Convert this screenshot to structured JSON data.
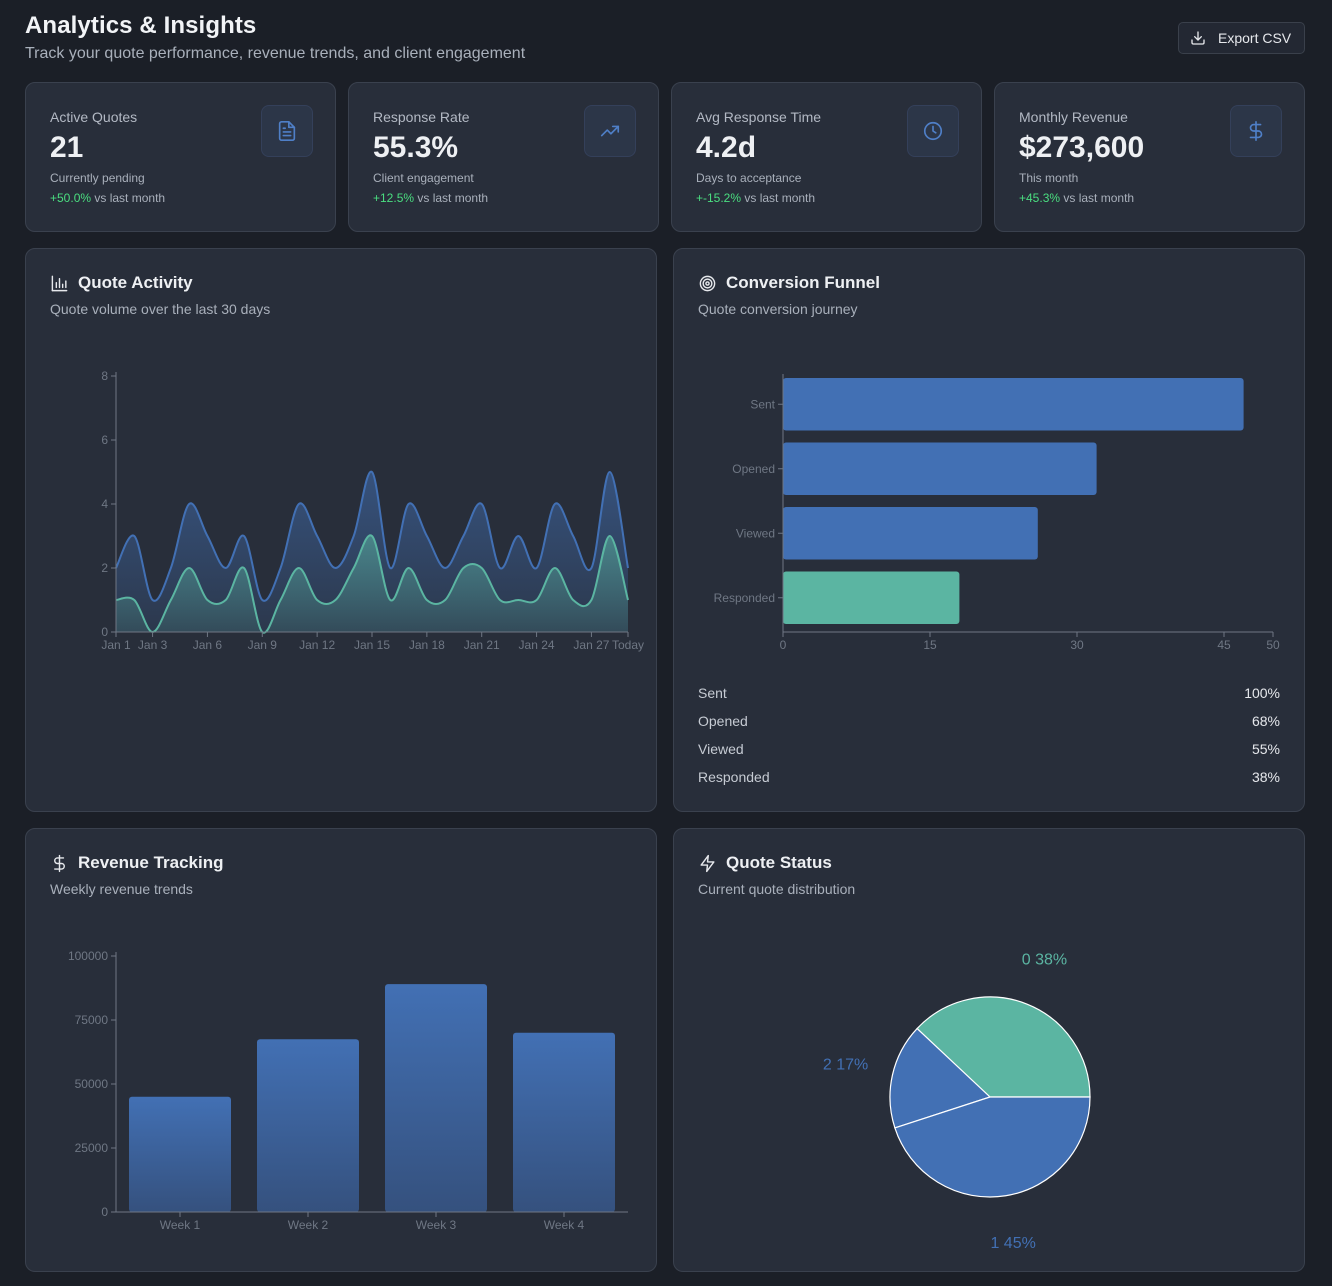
{
  "header": {
    "title": "Analytics & Insights",
    "subtitle": "Track your quote performance, revenue trends, and client engagement",
    "export_label": "Export CSV",
    "export_icon": "download-icon"
  },
  "stats": [
    {
      "label": "Active Quotes",
      "value": "21",
      "caption": "Currently pending",
      "change": "+50.0%",
      "change_suffix": " vs last month",
      "icon": "document-icon"
    },
    {
      "label": "Response Rate",
      "value": "55.3%",
      "caption": "Client engagement",
      "change": "+12.5%",
      "change_suffix": " vs last month",
      "icon": "trending-up-icon"
    },
    {
      "label": "Avg Response Time",
      "value": "4.2d",
      "caption": "Days to acceptance",
      "change": "+-15.2%",
      "change_suffix": " vs last month",
      "icon": "clock-icon"
    },
    {
      "label": "Monthly Revenue",
      "value": "$273,600",
      "caption": "This month",
      "change": "+45.3%",
      "change_suffix": " vs last month",
      "icon": "dollar-icon"
    }
  ],
  "panels": {
    "activity": {
      "title": "Quote Activity",
      "subtitle": "Quote volume over the last 30 days",
      "icon": "bar-chart-icon"
    },
    "funnel": {
      "title": "Conversion Funnel",
      "subtitle": "Quote conversion journey",
      "icon": "target-icon"
    },
    "revenue": {
      "title": "Revenue Tracking",
      "subtitle": "Weekly revenue trends",
      "icon": "dollar-icon"
    },
    "status": {
      "title": "Quote Status",
      "subtitle": "Current quote distribution",
      "icon": "lightning-icon"
    }
  },
  "colors": {
    "accent_blue": "#4270b4",
    "accent_teal": "#5bb5a2",
    "positive": "#4ade80"
  },
  "chart_data": [
    {
      "type": "area",
      "x_ticks": [
        "Jan 1",
        "Jan 3",
        "Jan 6",
        "Jan 9",
        "Jan 12",
        "Jan 15",
        "Jan 18",
        "Jan 21",
        "Jan 24",
        "Jan 27",
        "Today"
      ],
      "x_tick_positions": [
        0,
        2,
        5,
        8,
        11,
        14,
        17,
        20,
        23,
        26,
        28
      ],
      "ylim": [
        0,
        8
      ],
      "y_ticks": [
        0,
        2,
        4,
        6,
        8
      ],
      "series": [
        {
          "color": "#4270b4",
          "values": [
            2,
            3,
            1,
            2,
            4,
            3,
            2,
            3,
            1,
            2,
            4,
            3,
            2,
            3,
            5,
            2,
            4,
            3,
            2,
            3,
            4,
            2,
            3,
            2,
            4,
            3,
            2,
            5,
            2
          ]
        },
        {
          "color": "#5bb5a2",
          "values": [
            1,
            1,
            0,
            1,
            2,
            1,
            1,
            2,
            0,
            1,
            2,
            1,
            1,
            2,
            3,
            1,
            2,
            1,
            1,
            2,
            2,
            1,
            1,
            1,
            2,
            1,
            1,
            3,
            1
          ]
        }
      ]
    },
    {
      "type": "bar",
      "orientation": "horizontal",
      "categories": [
        "Sent",
        "Opened",
        "Viewed",
        "Responded"
      ],
      "values": [
        47,
        32,
        26,
        18
      ],
      "xlim": [
        0,
        50
      ],
      "x_ticks": [
        0,
        15,
        30,
        45,
        50
      ],
      "bar_colors": [
        "#4270b4",
        "#4270b4",
        "#4270b4",
        "#5bb5a2"
      ],
      "percentages": [
        {
          "stage": "Sent",
          "pct": "100%"
        },
        {
          "stage": "Opened",
          "pct": "68%"
        },
        {
          "stage": "Viewed",
          "pct": "55%"
        },
        {
          "stage": "Responded",
          "pct": "38%"
        }
      ]
    },
    {
      "type": "bar",
      "categories": [
        "Week 1",
        "Week 2",
        "Week 3",
        "Week 4"
      ],
      "values": [
        45000,
        67500,
        89000,
        70000
      ],
      "ylim": [
        0,
        100000
      ],
      "y_ticks": [
        0,
        25000,
        50000,
        75000,
        100000
      ]
    },
    {
      "type": "pie",
      "slices": [
        {
          "label": "0 38%",
          "value": 38,
          "color": "#5bb5a2"
        },
        {
          "label": "2 17%",
          "value": 17,
          "color": "#4270b4"
        },
        {
          "label": "1 45%",
          "value": 45,
          "color": "#4270b4"
        }
      ]
    }
  ]
}
